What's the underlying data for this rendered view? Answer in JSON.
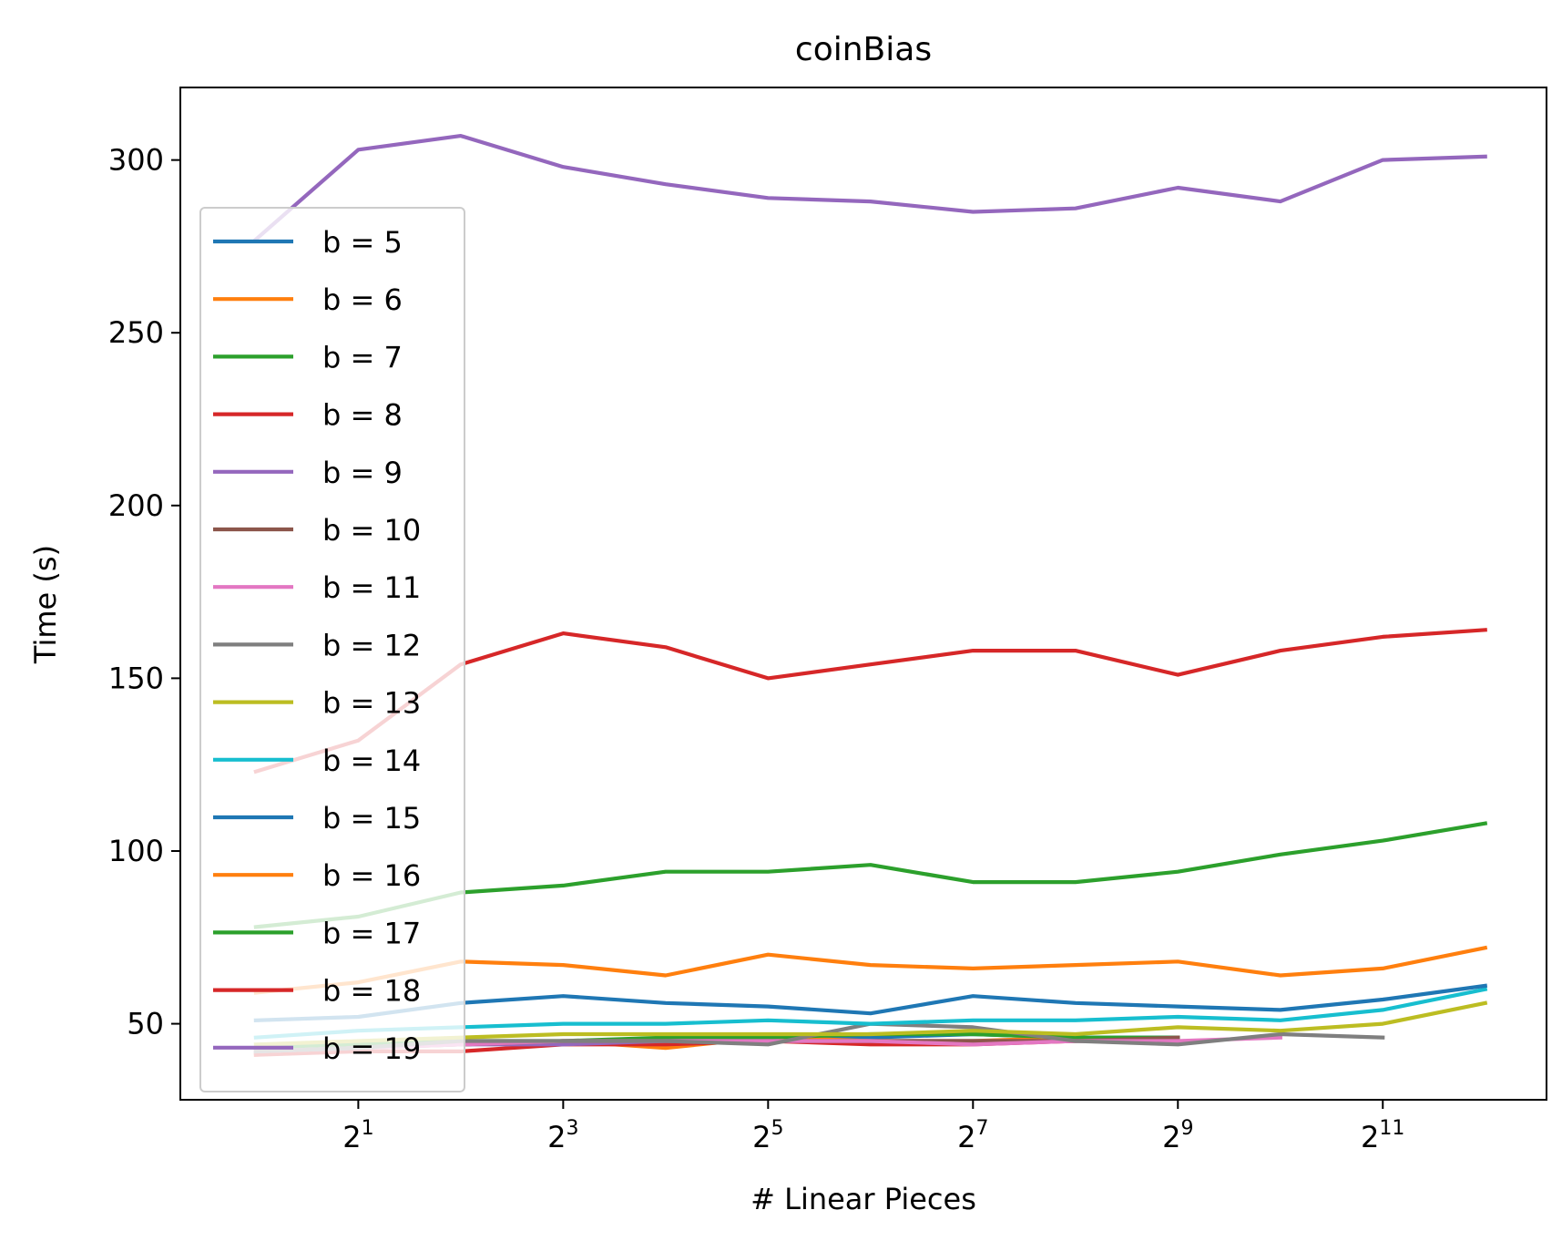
{
  "chart_data": {
    "type": "line",
    "title": "coinBias",
    "xlabel": "# Linear Pieces",
    "ylabel": "Time (s)",
    "x_scale": "log2",
    "x": [
      1,
      2,
      4,
      8,
      16,
      32,
      64,
      128,
      256,
      512,
      1024,
      2048,
      4096
    ],
    "xlim": [
      0.6,
      6200
    ],
    "ylim": [
      28,
      321
    ],
    "x_ticks": [
      {
        "value": 2,
        "base": "2",
        "exp": "1"
      },
      {
        "value": 8,
        "base": "2",
        "exp": "3"
      },
      {
        "value": 32,
        "base": "2",
        "exp": "5"
      },
      {
        "value": 128,
        "base": "2",
        "exp": "7"
      },
      {
        "value": 512,
        "base": "2",
        "exp": "9"
      },
      {
        "value": 2048,
        "base": "2",
        "exp": "11"
      }
    ],
    "y_ticks": [
      50,
      100,
      150,
      200,
      250,
      300
    ],
    "grid": false,
    "legend_position": "lower-left",
    "series": [
      {
        "name": "b = 5",
        "color": "#1f77b4",
        "values": [
          42,
          44,
          44,
          45,
          45,
          45,
          46,
          47,
          46,
          46,
          null,
          null,
          null
        ]
      },
      {
        "name": "b = 6",
        "color": "#ff7f0e",
        "values": [
          41,
          43,
          44,
          45,
          43,
          46,
          45,
          45,
          46,
          45,
          null,
          null,
          null
        ]
      },
      {
        "name": "b = 7",
        "color": "#2ca02c",
        "values": [
          43,
          44,
          45,
          45,
          46,
          46,
          47,
          47,
          46,
          46,
          null,
          null,
          null
        ]
      },
      {
        "name": "b = 8",
        "color": "#d62728",
        "values": [
          41,
          42,
          42,
          44,
          44,
          45,
          44,
          44,
          45,
          45,
          null,
          null,
          null
        ]
      },
      {
        "name": "b = 9",
        "color": "#9467bd",
        "values": [
          42,
          43,
          44,
          44,
          45,
          45,
          45,
          45,
          45,
          45,
          null,
          null,
          null
        ]
      },
      {
        "name": "b = 10",
        "color": "#8c564b",
        "values": [
          42,
          43,
          44,
          45,
          45,
          45,
          45,
          45,
          45,
          46,
          null,
          null,
          null
        ]
      },
      {
        "name": "b = 11",
        "color": "#e377c2",
        "values": [
          42,
          43,
          44,
          45,
          45,
          45,
          45,
          44,
          45,
          45,
          46,
          null,
          null
        ]
      },
      {
        "name": "b = 12",
        "color": "#7f7f7f",
        "values": [
          42,
          43,
          45,
          45,
          45,
          44,
          50,
          49,
          45,
          44,
          47,
          46,
          null
        ]
      },
      {
        "name": "b = 13",
        "color": "#bcbd22",
        "values": [
          44,
          45,
          46,
          47,
          47,
          47,
          47,
          48,
          47,
          49,
          48,
          50,
          56
        ]
      },
      {
        "name": "b = 14",
        "color": "#17becf",
        "values": [
          46,
          48,
          49,
          50,
          50,
          51,
          50,
          51,
          51,
          52,
          51,
          54,
          60
        ]
      },
      {
        "name": "b = 15",
        "color": "#1f77b4",
        "values": [
          51,
          52,
          56,
          58,
          56,
          55,
          53,
          58,
          56,
          55,
          54,
          57,
          61
        ]
      },
      {
        "name": "b = 16",
        "color": "#ff7f0e",
        "values": [
          59,
          62,
          68,
          67,
          64,
          70,
          67,
          66,
          67,
          68,
          64,
          66,
          72
        ]
      },
      {
        "name": "b = 17",
        "color": "#2ca02c",
        "values": [
          78,
          81,
          88,
          90,
          94,
          94,
          96,
          91,
          91,
          94,
          99,
          103,
          108
        ]
      },
      {
        "name": "b = 18",
        "color": "#d62728",
        "values": [
          123,
          132,
          154,
          163,
          159,
          150,
          154,
          158,
          158,
          151,
          158,
          162,
          164
        ]
      },
      {
        "name": "b = 19",
        "color": "#9467bd",
        "values": [
          277,
          303,
          307,
          298,
          293,
          289,
          288,
          285,
          286,
          292,
          288,
          300,
          301
        ]
      }
    ]
  }
}
